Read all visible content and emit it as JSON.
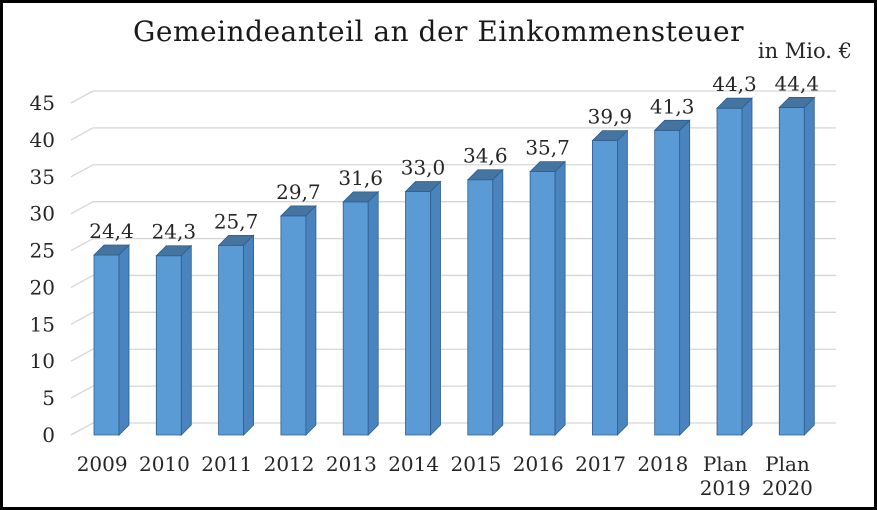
{
  "chart_data": {
    "type": "bar",
    "style": "3d-column",
    "title": "Gemeindeanteil an der Einkommensteuer",
    "unit_label": "in Mio. €",
    "xlabel": "",
    "ylabel": "in Mio. €",
    "categories": [
      "2009",
      "2010",
      "2011",
      "2012",
      "2013",
      "2014",
      "2015",
      "2016",
      "2017",
      "2018",
      "Plan 2019",
      "Plan 2020"
    ],
    "values": [
      24.4,
      24.3,
      25.7,
      29.7,
      31.6,
      33.0,
      34.6,
      35.7,
      39.9,
      41.3,
      44.3,
      44.4
    ],
    "value_labels": [
      "24,4",
      "24,3",
      "25,7",
      "29,7",
      "31,6",
      "33,0",
      "34,6",
      "35,7",
      "39,9",
      "41,3",
      "44,3",
      "44,4"
    ],
    "ylim": [
      0,
      45
    ],
    "ytick_step": 5,
    "ytick_labels": [
      "0",
      "5",
      "10",
      "15",
      "20",
      "25",
      "30",
      "35",
      "40",
      "45"
    ],
    "grid": true,
    "legend": false,
    "colors": {
      "bar_front": "#5B9BD5",
      "bar_side": "#4A84BE",
      "bar_top": "#44749F",
      "bar_border": "#2E5D8C",
      "gridline": "#D6D6D6",
      "text": "#262626",
      "frame_border": "#000000",
      "background": "#FFFFFF"
    }
  }
}
